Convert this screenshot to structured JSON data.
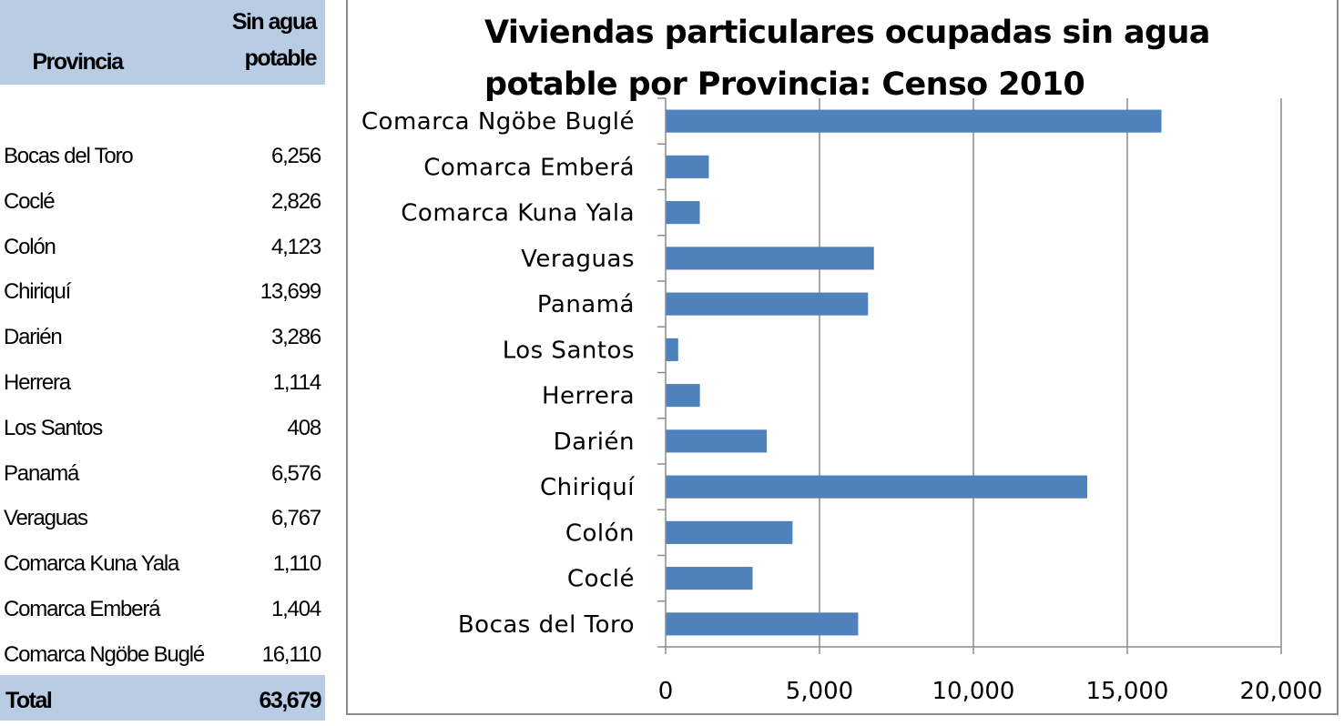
{
  "table": {
    "header_province": "Provincia",
    "header_value_line1": "Sin agua",
    "header_value_line2": "potable",
    "rows": [
      {
        "name": "Bocas del Toro",
        "value": "6,256"
      },
      {
        "name": "Coclé",
        "value": "2,826"
      },
      {
        "name": "Colón",
        "value": "4,123"
      },
      {
        "name": "Chiriquí",
        "value": "13,699"
      },
      {
        "name": "Darién",
        "value": "3,286"
      },
      {
        "name": "Herrera",
        "value": "1,114"
      },
      {
        "name": "Los Santos",
        "value": "408"
      },
      {
        "name": "Panamá",
        "value": "6,576"
      },
      {
        "name": "Veraguas",
        "value": "6,767"
      },
      {
        "name": "Comarca Kuna Yala",
        "value": "1,110"
      },
      {
        "name": "Comarca Emberá",
        "value": "1,404"
      },
      {
        "name": "Comarca Ngöbe Buglé",
        "value": "16,110"
      }
    ],
    "total_label": "Total",
    "total_value": "63,679"
  },
  "chart_data": {
    "type": "bar",
    "orientation": "horizontal",
    "title": "Viviendas particulares ocupadas sin agua potable por Provincia: Censo 2010",
    "categories": [
      "Bocas del Toro",
      "Coclé",
      "Colón",
      "Chiriquí",
      "Darién",
      "Herrera",
      "Los Santos",
      "Panamá",
      "Veraguas",
      "Comarca Kuna Yala",
      "Comarca Emberá",
      "Comarca Ngöbe Buglé"
    ],
    "values": [
      6256,
      2826,
      4123,
      13699,
      3286,
      1114,
      408,
      6576,
      6767,
      1110,
      1404,
      16110
    ],
    "xlim": [
      0,
      20000
    ],
    "xticks": [
      0,
      5000,
      10000,
      15000,
      20000
    ],
    "xtick_labels": [
      "0",
      "5,000",
      "10,000",
      "15,000",
      "20,000"
    ],
    "xlabel": "",
    "ylabel": "",
    "grid": "vertical",
    "legend": "none",
    "bar_color": "#4f81bd"
  }
}
